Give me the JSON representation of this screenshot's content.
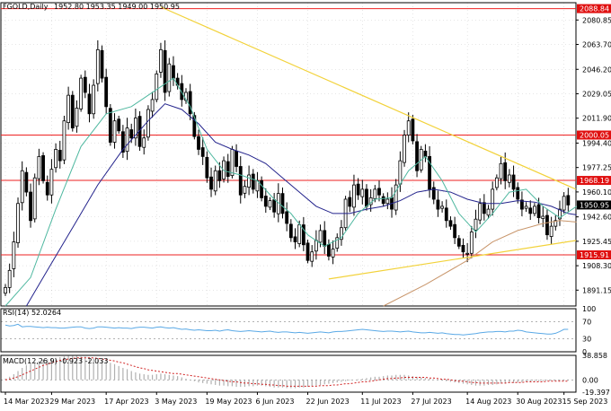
{
  "header": {
    "symbol_label": "FGOLD,Daily",
    "ohlc_label": "1952.80 1953.35 1949.00 1950.95"
  },
  "colors": {
    "background": "#ffffff",
    "bull_candle": "#ffffff",
    "bear_candle": "#000000",
    "level_line": "#ee2222",
    "trend_line": "#f2d23a",
    "ma_fast": "#4fb8a0",
    "ma_mid": "#23238c",
    "ma_slow": "#c8956a",
    "rsi_line": "#5aa9e6",
    "macd_hist": "#b0b0b0",
    "macd_signal": "#d02020",
    "price_tag_bg": "#000000",
    "level_tag_bg": "#e01010"
  },
  "chart_data": [
    {
      "type": "candlestick",
      "title": "FGOLD,Daily",
      "ylim": [
        1880,
        2093
      ],
      "price_ticks": [
        2080.85,
        2063.7,
        2046.2,
        2029.05,
        2011.9,
        1994.4,
        1977.25,
        1960.1,
        1942.6,
        1925.45,
        1908.3,
        1891.15
      ],
      "date_ticks": [
        {
          "i": 0,
          "label": "14 Mar 2023"
        },
        {
          "i": 11,
          "label": "29 Mar 2023"
        },
        {
          "i": 24,
          "label": "17 Apr 2023"
        },
        {
          "i": 36,
          "label": "3 May 2023"
        },
        {
          "i": 48,
          "label": "19 May 2023"
        },
        {
          "i": 60,
          "label": "6 Jun 2023"
        },
        {
          "i": 72,
          "label": "22 Jun 2023"
        },
        {
          "i": 85,
          "label": "11 Jul 2023"
        },
        {
          "i": 97,
          "label": "27 Jul 2023"
        },
        {
          "i": 110,
          "label": "14 Aug 2023"
        },
        {
          "i": 122,
          "label": "30 Aug 2023"
        },
        {
          "i": 133,
          "label": "15 Sep 2023"
        }
      ],
      "current_price": "1950.95",
      "levels": [
        {
          "value": 2088.84,
          "label": "2088.84"
        },
        {
          "value": 2000.05,
          "label": "2000.05"
        },
        {
          "value": 1968.19,
          "label": "1968.19"
        },
        {
          "value": 1915.91,
          "label": "1915.91"
        }
      ],
      "trendlines": [
        {
          "i1": 37,
          "p1": 2090,
          "i2": 140,
          "p2": 1962
        },
        {
          "i1": 77,
          "p1": 1899,
          "i2": 140,
          "p2": 1926
        }
      ],
      "closes": [
        1893,
        1905,
        1925,
        1952,
        1975,
        1960,
        1940,
        1970,
        1985,
        1968,
        1958,
        1976,
        1990,
        1982,
        2010,
        2028,
        2005,
        2019,
        2040,
        2030,
        2015,
        2035,
        2060,
        2040,
        2020,
        1995,
        2010,
        2003,
        1988,
        2005,
        1998,
        2012,
        1992,
        1998,
        2018,
        2025,
        2043,
        2060,
        2030,
        2050,
        2040,
        2035,
        2025,
        2030,
        2015,
        1999,
        1990,
        1985,
        1970,
        1962,
        1975,
        1968,
        1982,
        1971,
        1990,
        1978,
        1958,
        1964,
        1972,
        1962,
        1968,
        1956,
        1950,
        1954,
        1946,
        1959,
        1945,
        1938,
        1928,
        1925,
        1937,
        1923,
        1912,
        1918,
        1926,
        1933,
        1922,
        1915,
        1920,
        1928,
        1935,
        1955,
        1950,
        1965,
        1958,
        1962,
        1950,
        1956,
        1962,
        1958,
        1952,
        1955,
        1948,
        1965,
        1982,
        2000,
        2010,
        1996,
        1975,
        1990,
        1985,
        1962,
        1955,
        1948,
        1950,
        1940,
        1936,
        1928,
        1922,
        1918,
        1917,
        1932,
        1941,
        1952,
        1945,
        1948,
        1962,
        1970,
        1980,
        1968,
        1972,
        1962,
        1955,
        1948,
        1950,
        1945,
        1950,
        1942,
        1943,
        1930,
        1936,
        1940,
        1948,
        1957,
        1950.95
      ],
      "ma_fast": [
        [
          0,
          1880
        ],
        [
          6,
          1900
        ],
        [
          12,
          1948
        ],
        [
          18,
          1992
        ],
        [
          24,
          2015
        ],
        [
          30,
          2020
        ],
        [
          36,
          2032
        ],
        [
          40,
          2040
        ],
        [
          44,
          2020
        ],
        [
          48,
          1990
        ],
        [
          52,
          1975
        ],
        [
          56,
          1972
        ],
        [
          60,
          1968
        ],
        [
          64,
          1955
        ],
        [
          68,
          1945
        ],
        [
          72,
          1930
        ],
        [
          76,
          1922
        ],
        [
          80,
          1928
        ],
        [
          84,
          1945
        ],
        [
          88,
          1955
        ],
        [
          92,
          1956
        ],
        [
          96,
          1975
        ],
        [
          100,
          1985
        ],
        [
          104,
          1968
        ],
        [
          108,
          1945
        ],
        [
          112,
          1932
        ],
        [
          116,
          1945
        ],
        [
          120,
          1960
        ],
        [
          124,
          1962
        ],
        [
          128,
          1950
        ],
        [
          132,
          1942
        ],
        [
          136,
          1950
        ]
      ],
      "ma_mid": [
        [
          5,
          1880
        ],
        [
          10,
          1905
        ],
        [
          16,
          1935
        ],
        [
          22,
          1965
        ],
        [
          28,
          1990
        ],
        [
          34,
          2010
        ],
        [
          38,
          2022
        ],
        [
          42,
          2018
        ],
        [
          46,
          2008
        ],
        [
          50,
          1995
        ],
        [
          54,
          1990
        ],
        [
          58,
          1986
        ],
        [
          62,
          1980
        ],
        [
          66,
          1970
        ],
        [
          70,
          1960
        ],
        [
          74,
          1950
        ],
        [
          78,
          1945
        ],
        [
          82,
          1945
        ],
        [
          86,
          1948
        ],
        [
          90,
          1950
        ],
        [
          94,
          1954
        ],
        [
          98,
          1960
        ],
        [
          102,
          1962
        ],
        [
          106,
          1960
        ],
        [
          110,
          1955
        ],
        [
          114,
          1952
        ],
        [
          118,
          1952
        ],
        [
          122,
          1954
        ],
        [
          126,
          1953
        ],
        [
          130,
          1950
        ],
        [
          134,
          1945
        ],
        [
          136,
          1944
        ]
      ],
      "ma_slow": [
        [
          90,
          1880
        ],
        [
          100,
          1895
        ],
        [
          110,
          1912
        ],
        [
          116,
          1925
        ],
        [
          122,
          1933
        ],
        [
          128,
          1938
        ],
        [
          132,
          1940
        ],
        [
          136,
          1939
        ]
      ]
    },
    {
      "type": "line",
      "title": "RSI(14) 52.0264",
      "ylim": [
        0,
        100
      ],
      "ticks": [
        100,
        70,
        30,
        0
      ],
      "values": [
        62,
        60,
        61,
        64,
        58,
        59,
        59,
        58,
        57,
        56,
        57,
        56,
        56,
        55,
        55,
        56,
        57,
        58,
        58,
        55,
        54,
        55,
        58,
        58,
        57,
        56,
        55,
        56,
        55,
        55,
        54,
        56,
        57,
        57,
        56,
        55,
        57,
        58,
        56,
        55,
        56,
        54,
        52,
        53,
        51,
        50,
        51,
        50,
        49,
        49,
        50,
        48,
        50,
        51,
        49,
        48,
        47,
        48,
        49,
        48,
        47,
        46,
        47,
        48,
        46,
        45,
        46,
        46,
        45,
        44,
        45,
        44,
        43,
        44,
        45,
        46,
        45,
        44,
        46,
        47,
        47,
        48,
        49,
        50,
        51,
        52,
        51,
        50,
        49,
        48,
        47,
        48,
        48,
        47,
        46,
        47,
        48,
        46,
        45,
        44,
        44,
        45,
        44,
        43,
        44,
        42,
        41,
        40,
        40,
        39,
        40,
        41,
        42,
        44,
        45,
        46,
        46,
        47,
        47,
        46,
        48,
        48,
        50,
        49,
        46,
        45,
        44,
        43,
        42,
        41,
        41,
        43,
        47,
        52,
        52.0264
      ]
    },
    {
      "type": "bar",
      "title": "MACD(12,26,9) -0.923 -2.033",
      "ylim": [
        -19.397,
        38.858
      ],
      "ticks": [
        38.858,
        0.0,
        -19.397
      ],
      "macd": [
        2,
        5,
        9,
        14,
        19,
        23,
        26,
        28,
        30,
        32,
        33,
        34,
        35,
        36,
        37,
        38,
        38,
        38,
        37,
        37,
        36,
        34,
        32,
        31,
        29,
        27,
        25,
        22,
        19,
        17,
        14,
        12,
        10,
        9,
        8,
        8,
        9,
        10,
        9,
        8,
        7,
        6,
        4,
        2,
        0,
        -2,
        -4,
        -5,
        -6,
        -7,
        -8,
        -9,
        -9,
        -10,
        -10,
        -11,
        -11,
        -11,
        -10,
        -10,
        -9,
        -9,
        -10,
        -11,
        -12,
        -12,
        -12,
        -13,
        -13,
        -13,
        -12,
        -12,
        -11,
        -10,
        -9,
        -8,
        -7,
        -6,
        -5,
        -4,
        -3,
        -2,
        -1,
        0,
        1,
        2,
        3,
        4,
        5,
        5,
        6,
        7,
        7,
        8,
        8,
        8,
        7,
        6,
        5,
        4,
        3,
        2,
        1,
        0,
        -1,
        -2,
        -3,
        -4,
        -5,
        -6,
        -7,
        -8,
        -9,
        -9,
        -9,
        -8,
        -8,
        -7,
        -6,
        -6,
        -5,
        -5,
        -4,
        -4,
        -3,
        -3,
        -2,
        -2,
        -2,
        -1,
        -1,
        -1,
        -1,
        -1,
        -0.923
      ],
      "signal": [
        0,
        1,
        3,
        5,
        8,
        11,
        14,
        17,
        20,
        23,
        25,
        27,
        29,
        31,
        32,
        33,
        34,
        35,
        35,
        35,
        35,
        35,
        34,
        33,
        32,
        31,
        30,
        28,
        27,
        25,
        23,
        21,
        19,
        18,
        16,
        15,
        14,
        13,
        12,
        11,
        10,
        10,
        9,
        8,
        7,
        6,
        5,
        4,
        3,
        2,
        1,
        0,
        -1,
        -2,
        -3,
        -3,
        -4,
        -5,
        -5,
        -6,
        -6,
        -7,
        -7,
        -8,
        -8,
        -9,
        -9,
        -10,
        -10,
        -10,
        -10,
        -10,
        -10,
        -10,
        -10,
        -9,
        -9,
        -9,
        -8,
        -8,
        -7,
        -6,
        -6,
        -5,
        -4,
        -3,
        -3,
        -2,
        -1,
        0,
        1,
        2,
        2,
        3,
        3,
        4,
        4,
        4,
        4,
        4,
        4,
        3,
        3,
        2,
        1,
        1,
        0,
        -1,
        -2,
        -2,
        -3,
        -4,
        -4,
        -5,
        -5,
        -5,
        -5,
        -5,
        -5,
        -5,
        -4,
        -4,
        -4,
        -4,
        -3,
        -3,
        -3,
        -3,
        -3,
        -2,
        -2,
        -2,
        -2,
        -2,
        -2.033
      ]
    }
  ]
}
